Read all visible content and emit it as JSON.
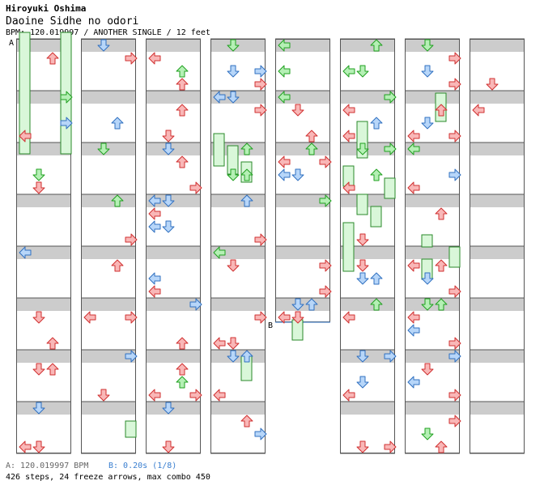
{
  "header": {
    "artist": "Hiroyuki Oshima",
    "title": "Daoine Sidhe no odori",
    "meta": "BPM: 120.019997 / ANOTHER SINGLE / 12 feet"
  },
  "markers": {
    "a": "A",
    "b": "B"
  },
  "footer": {
    "bpm_a": "A: 120.019997 BPM",
    "bpm_b": "B: 0.20s (1/8)",
    "stats": "426 steps, 24 freeze arrows, max combo 450"
  },
  "colors": {
    "quarter": "#f9b7b7",
    "quarter_stroke": "#d03030",
    "eighth": "#b7d6f9",
    "eighth_stroke": "#3070c0",
    "sixteenth": "#b5f0b5",
    "sixteenth_stroke": "#20a020",
    "freeze_fill": "#d9f7d9",
    "freeze_stroke": "#2a8a2a",
    "stripe": "#cccccc"
  },
  "icons": {
    "left": "left-arrow-icon",
    "down": "down-arrow-icon",
    "up": "up-arrow-icon",
    "right": "right-arrow-icon"
  }
}
